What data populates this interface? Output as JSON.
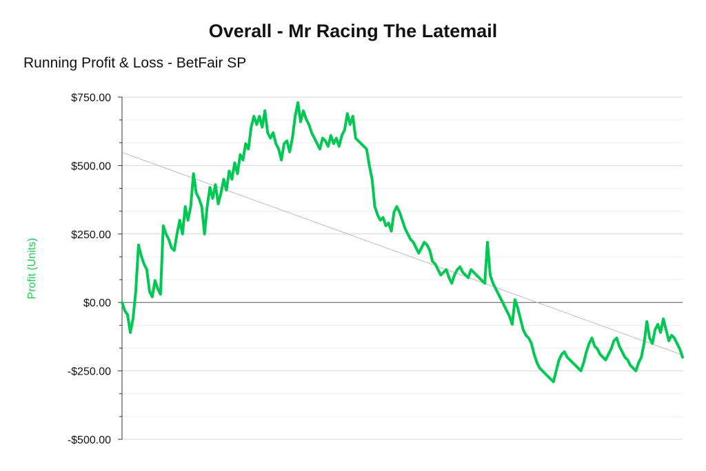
{
  "chart_data": {
    "type": "line",
    "title": "Overall - Mr Racing The Latemail",
    "subtitle": "Running Profit & Loss - BetFair SP",
    "ylabel": "Profit (Units)",
    "ylim": [
      -500,
      750
    ],
    "yticks": [
      750,
      500,
      250,
      0,
      -250,
      -500
    ],
    "ytick_labels": [
      "$750.00",
      "$500.00",
      "$250.00",
      "$0.00",
      "-$250.00",
      "-$500.00"
    ],
    "grid": true,
    "legend": "none",
    "colors": {
      "series": "#00c853",
      "trend": "#bbbbbb",
      "zero_line": "#555555",
      "ylabel": "#22cc55"
    },
    "series": [
      {
        "values": [
          0,
          -30,
          -45,
          -110,
          -60,
          40,
          210,
          170,
          140,
          120,
          40,
          20,
          80,
          50,
          30,
          280,
          250,
          230,
          200,
          190,
          250,
          300,
          250,
          350,
          300,
          350,
          470,
          400,
          380,
          350,
          250,
          350,
          420,
          380,
          430,
          360,
          400,
          450,
          410,
          480,
          450,
          510,
          470,
          540,
          520,
          580,
          560,
          640,
          680,
          650,
          680,
          640,
          700,
          620,
          600,
          620,
          580,
          560,
          520,
          580,
          590,
          550,
          600,
          680,
          730,
          660,
          700,
          670,
          650,
          620,
          600,
          580,
          560,
          600,
          590,
          570,
          610,
          580,
          600,
          570,
          610,
          630,
          690,
          650,
          680,
          600,
          590,
          580,
          570,
          560,
          500,
          450,
          350,
          320,
          300,
          310,
          280,
          290,
          260,
          330,
          350,
          330,
          300,
          270,
          250,
          230,
          220,
          200,
          180,
          200,
          220,
          210,
          190,
          150,
          140,
          120,
          100,
          110,
          120,
          90,
          70,
          100,
          120,
          130,
          110,
          100,
          90,
          120,
          110,
          100,
          90,
          80,
          70,
          220,
          100,
          70,
          50,
          30,
          10,
          -10,
          -30,
          -50,
          -80,
          10,
          -20,
          -60,
          -100,
          -120,
          -130,
          -150,
          -190,
          -220,
          -240,
          -250,
          -260,
          -270,
          -280,
          -290,
          -250,
          -210,
          -190,
          -180,
          -200,
          -210,
          -220,
          -230,
          -240,
          -250,
          -220,
          -180,
          -150,
          -130,
          -160,
          -170,
          -190,
          -200,
          -210,
          -190,
          -170,
          -140,
          -130,
          -160,
          -180,
          -200,
          -210,
          -230,
          -240,
          -250,
          -220,
          -200,
          -150,
          -70,
          -130,
          -150,
          -100,
          -80,
          -110,
          -60,
          -100,
          -140,
          -120,
          -130,
          -150,
          -170,
          -200
        ]
      }
    ],
    "trendline": {
      "start": 548,
      "end": -192
    }
  }
}
